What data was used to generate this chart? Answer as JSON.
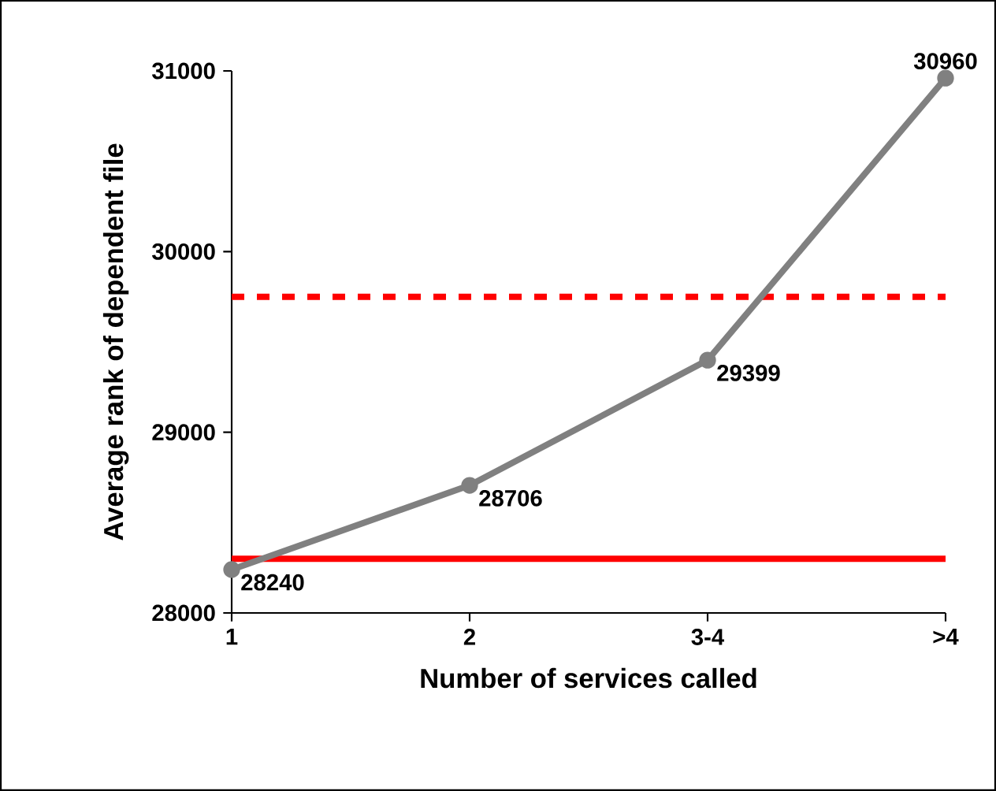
{
  "chart_data": {
    "type": "line",
    "xlabel": "Number of services called",
    "ylabel": "Average rank of dependent file",
    "categories": [
      "1",
      "2",
      "3-4",
      ">4"
    ],
    "series": [
      {
        "color": "#808080",
        "values": [
          28240,
          28706,
          29399,
          30960
        ]
      }
    ],
    "ylim": [
      28000,
      31000
    ],
    "yticks": [
      28000,
      29000,
      30000,
      31000
    ],
    "marker": "circle",
    "line_style": "solid",
    "data_labels": true,
    "ref_lines": [
      {
        "axis": "y",
        "value": 28300,
        "color": "#ff0000",
        "line_style": "solid"
      },
      {
        "axis": "y",
        "value": 29750,
        "color": "#ff0000",
        "line_style": "dashed"
      }
    ]
  }
}
